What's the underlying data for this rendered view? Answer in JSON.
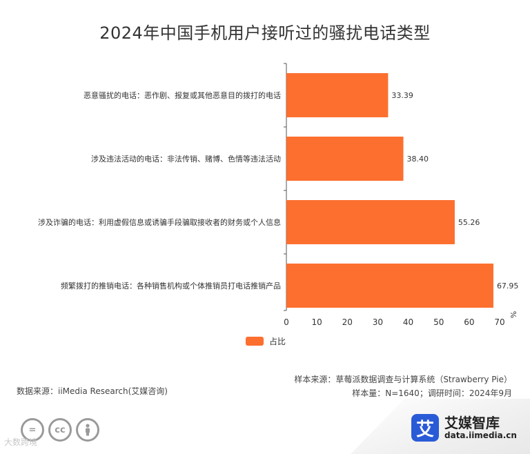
{
  "chart_data": {
    "type": "bar",
    "orientation": "horizontal",
    "title": "2024年中国手机用户接听过的骚扰电话类型",
    "categories": [
      "恶意骚扰的电话：恶作剧、报复或其他恶意目的拨打的电话",
      "涉及违法活动的电话：非法传销、赌博、色情等违法活动",
      "涉及诈骗的电话：利用虚假信息或诱骗手段骗取接收者的财务或个人信息",
      "频繁拨打的推销电话：各种销售机构或个体推销员打电话推销产品"
    ],
    "series": [
      {
        "name": "占比",
        "values": [
          33.39,
          38.4,
          55.26,
          67.95
        ]
      }
    ],
    "value_labels": [
      "33.39",
      "38.40",
      "55.26",
      "67.95"
    ],
    "xticks": [
      "0",
      "10",
      "20",
      "30",
      "40",
      "50",
      "60",
      "70"
    ],
    "xlim": [
      0,
      70
    ],
    "unit": "%",
    "grid": false,
    "legend_position": "bottom-center",
    "bar_color": "#fd6f2f"
  },
  "source": {
    "sample_source": "样本来源：草莓派数据调查与计算系统（Strawberry Pie）",
    "sample_info": "样本量：N=1640；调研时间：2024年9月",
    "data_source": "数据来源：iiMedia Research(艾媒咨询)"
  },
  "brand": {
    "logo_char": "艾",
    "name": "艾媒智库",
    "url": "data.iimedia.cn"
  },
  "license_icons": [
    "equals-icon",
    "cc-icon",
    "person-icon"
  ],
  "license_labels": [
    "=",
    "cc"
  ],
  "watermark": "大数跨境"
}
